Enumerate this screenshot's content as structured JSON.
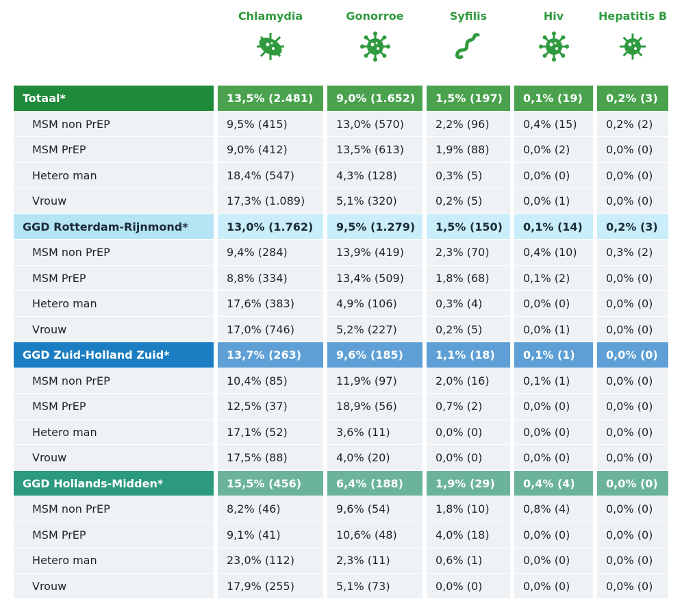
{
  "headers": [
    "Chlamydia",
    "Gonorroe",
    "Syfilis",
    "Hiv",
    "Hepatitis B"
  ],
  "groups": [
    {
      "name": "Totaal*",
      "totals": [
        "13,5% (2.481)",
        "9,0% (1.652)",
        "1,5% (197)",
        "0,1% (19)",
        "0,2% (3)"
      ],
      "rows": [
        {
          "label": "MSM non PrEP",
          "values": [
            "9,5% (415)",
            "13,0% (570)",
            "2,2% (96)",
            "0,4% (15)",
            "0,2% (2)"
          ]
        },
        {
          "label": "MSM PrEP",
          "values": [
            "9,0% (412)",
            "13,5% (613)",
            "1,9% (88)",
            "0,0% (2)",
            "0,0% (0)"
          ]
        },
        {
          "label": "Hetero man",
          "values": [
            "18,4% (547)",
            "4,3% (128)",
            "0,3% (5)",
            "0,0% (0)",
            "0,0% (0)"
          ]
        },
        {
          "label": "Vrouw",
          "values": [
            "17,3% (1.089)",
            "5,1% (320)",
            "0,2% (5)",
            "0,0% (1)",
            "0,0% (0)"
          ]
        }
      ]
    },
    {
      "name": "GGD Rotterdam-Rijnmond*",
      "totals": [
        "13,0% (1.762)",
        "9,5% (1.279)",
        "1,5% (150)",
        "0,1% (14)",
        "0,2% (3)"
      ],
      "rows": [
        {
          "label": "MSM non PrEP",
          "values": [
            "9,4% (284)",
            "13,9% (419)",
            "2,3% (70)",
            "0,4% (10)",
            "0,3% (2)"
          ]
        },
        {
          "label": "MSM PrEP",
          "values": [
            "8,8% (334)",
            "13,4% (509)",
            "1,8% (68)",
            "0,1% (2)",
            "0,0% (0)"
          ]
        },
        {
          "label": "Hetero man",
          "values": [
            "17,6% (383)",
            "4,9% (106)",
            "0,3% (4)",
            "0,0% (0)",
            "0,0% (0)"
          ]
        },
        {
          "label": "Vrouw",
          "values": [
            "17,0% (746)",
            "5,2% (227)",
            "0,2% (5)",
            "0,0% (1)",
            "0,0% (0)"
          ]
        }
      ]
    },
    {
      "name": "GGD Zuid-Holland Zuid*",
      "totals": [
        "13,7% (263)",
        "9,6% (185)",
        "1,1% (18)",
        "0,1% (1)",
        "0,0% (0)"
      ],
      "rows": [
        {
          "label": "MSM non PrEP",
          "values": [
            "10,4% (85)",
            "11,9% (97)",
            "2,0% (16)",
            "0,1% (1)",
            "0,0% (0)"
          ]
        },
        {
          "label": "MSM PrEP",
          "values": [
            "12,5% (37)",
            "18,9% (56)",
            "0,7% (2)",
            "0,0% (0)",
            "0,0% (0)"
          ]
        },
        {
          "label": "Hetero man",
          "values": [
            "17,1% (52)",
            "3,6% (11)",
            "0,0% (0)",
            "0,0% (0)",
            "0,0% (0)"
          ]
        },
        {
          "label": "Vrouw",
          "values": [
            "17,5% (88)",
            "4,0% (20)",
            "0,0% (0)",
            "0,0% (0)",
            "0,0% (0)"
          ]
        }
      ]
    },
    {
      "name": "GGD Hollands-Midden*",
      "totals": [
        "15,5% (456)",
        "6,4% (188)",
        "1,9% (29)",
        "0,4% (4)",
        "0,0% (0)"
      ],
      "rows": [
        {
          "label": "MSM non PrEP",
          "values": [
            "8,2% (46)",
            "9,6% (54)",
            "1,8% (10)",
            "0,8% (4)",
            "0,0% (0)"
          ]
        },
        {
          "label": "MSM PrEP",
          "values": [
            "9,1% (41)",
            "10,6% (48)",
            "4,0% (18)",
            "0,0% (0)",
            "0,0% (0)"
          ]
        },
        {
          "label": "Hetero man",
          "values": [
            "23,0% (112)",
            "2,3% (11)",
            "0,6% (1)",
            "0,0% (0)",
            "0,0% (0)"
          ]
        },
        {
          "label": "Vrouw",
          "values": [
            "17,9% (255)",
            "5,1% (73)",
            "0,0% (0)",
            "0,0% (0)",
            "0,0% (0)"
          ]
        }
      ]
    }
  ]
}
